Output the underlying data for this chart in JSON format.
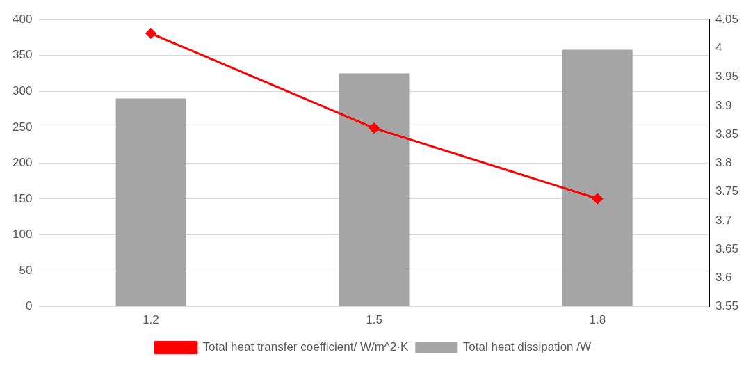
{
  "chart_data": {
    "type": "bar",
    "categories": [
      "1.2",
      "1.5",
      "1.8"
    ],
    "series": [
      {
        "name": "Total heat dissipation /W",
        "color": "#a5a5a5",
        "values": [
          290,
          325,
          358
        ]
      },
      {
        "name": "Total heat transfer coefficient/ W/m^2·K",
        "type": "line",
        "axis": "y2",
        "color": "#ff0000",
        "marker": "diamond",
        "values": [
          4.026,
          3.861,
          3.738
        ]
      }
    ],
    "ylim": [
      0,
      400
    ],
    "yticks": [
      0,
      50,
      100,
      150,
      200,
      250,
      300,
      350,
      400
    ],
    "y2lim": [
      3.55,
      4.05
    ],
    "y2ticks": [
      3.55,
      3.6,
      3.65,
      3.7,
      3.75,
      3.8,
      3.85,
      3.9,
      3.95,
      4,
      4.05
    ],
    "grid": "y",
    "legend": "bottom"
  }
}
